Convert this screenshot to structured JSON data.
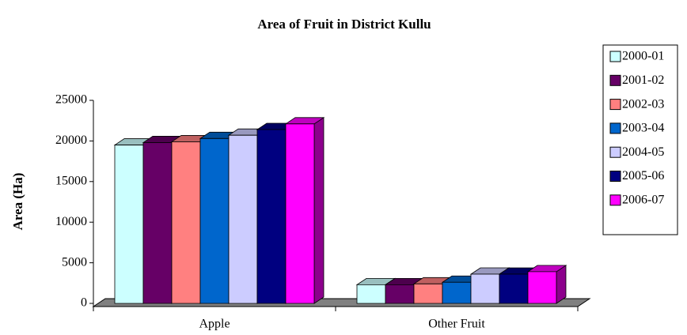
{
  "chart_data": {
    "type": "bar3d",
    "title": "Area of Fruit in District Kullu",
    "y_label": "Area (Ha)",
    "categories": [
      "Apple",
      "Other Fruit"
    ],
    "series": [
      {
        "name": "2000-01",
        "color": "#ccffff",
        "values": [
          19500,
          2300
        ]
      },
      {
        "name": "2001-02",
        "color": "#660066",
        "values": [
          19800,
          2300
        ]
      },
      {
        "name": "2002-03",
        "color": "#ff8080",
        "values": [
          19900,
          2400
        ]
      },
      {
        "name": "2003-04",
        "color": "#0066cc",
        "values": [
          20300,
          2600
        ]
      },
      {
        "name": "2004-05",
        "color": "#ccccff",
        "values": [
          20700,
          3600
        ]
      },
      {
        "name": "2005-06",
        "color": "#000080",
        "values": [
          21400,
          3600
        ]
      },
      {
        "name": "2006-07",
        "color": "#ff00ff",
        "values": [
          22100,
          3900
        ]
      }
    ],
    "ylim": [
      0,
      25000
    ],
    "yticks": [
      0,
      5000,
      10000,
      15000,
      20000,
      25000
    ],
    "legend": "right"
  }
}
